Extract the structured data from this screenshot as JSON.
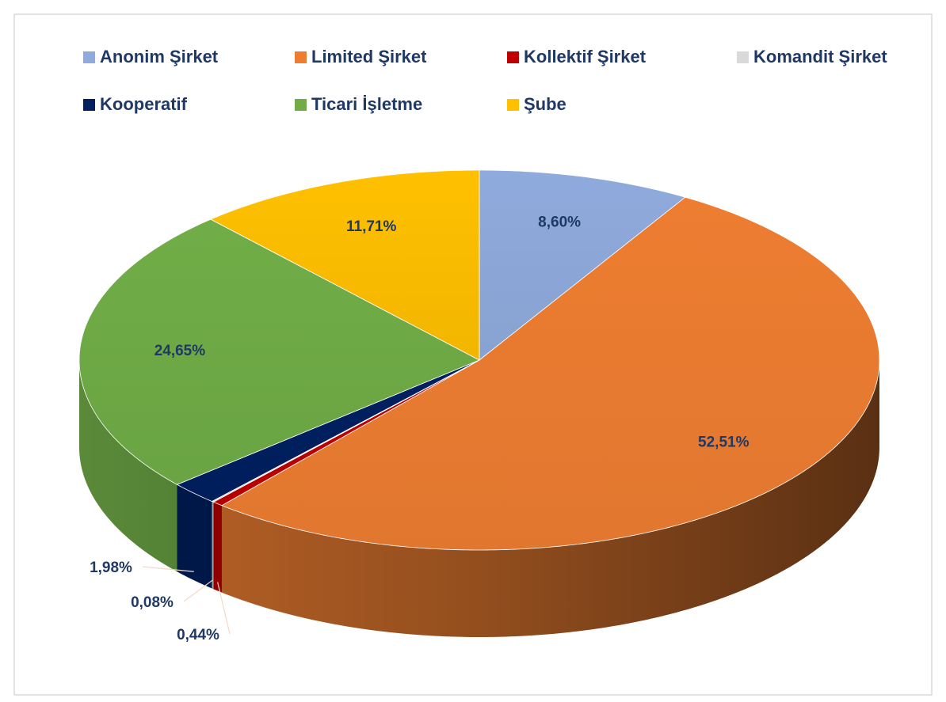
{
  "chart_data": {
    "type": "pie3d",
    "categories": [
      "Anonim Şirket",
      "Limited Şirket",
      "Kollektif Şirket",
      "Komandit Şirket",
      "Kooperatif",
      "Ticari İşletme",
      "Şube"
    ],
    "values": [
      8.6,
      52.51,
      0.44,
      0.08,
      1.98,
      24.65,
      11.71
    ],
    "value_labels": [
      "8,60%",
      "52,51%",
      "0,44%",
      "0,08%",
      "1,98%",
      "24,65%",
      "11,71%"
    ],
    "colors": [
      "#8faadc",
      "#ed7d31",
      "#c00000",
      "#d9d9d9",
      "#002060",
      "#70ad47",
      "#ffc000"
    ],
    "legend": "top"
  }
}
